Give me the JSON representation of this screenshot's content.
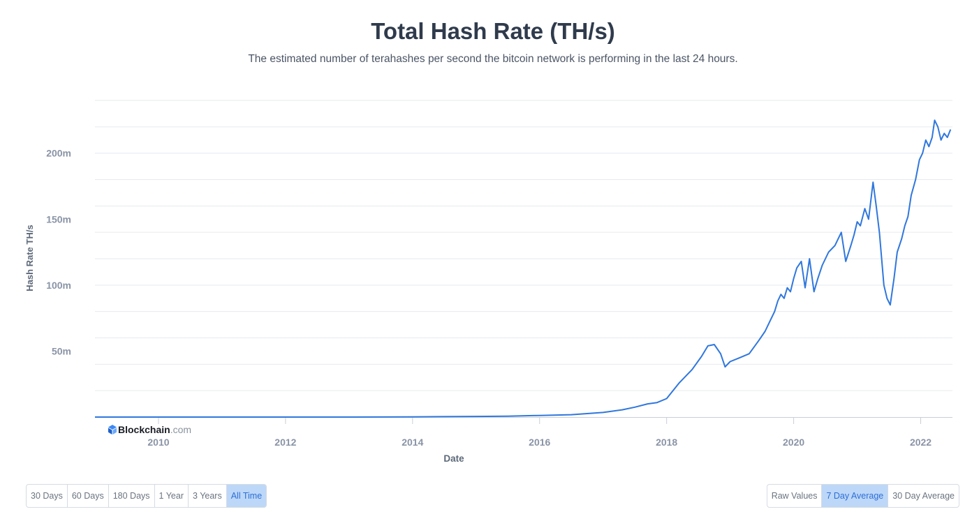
{
  "header": {
    "title": "Total Hash Rate (TH/s)",
    "subtitle": "The estimated number of terahashes per second the bitcoin network is performing in the last 24 hours."
  },
  "brand": {
    "name": "Blockchain",
    "suffix": ".com"
  },
  "range_buttons": [
    "30 Days",
    "60 Days",
    "180 Days",
    "1 Year",
    "3 Years",
    "All Time"
  ],
  "range_active": "All Time",
  "avg_buttons": [
    "Raw Values",
    "7 Day Average",
    "30 Day Average"
  ],
  "avg_active": "7 Day Average",
  "colors": {
    "line": "#2f77dd",
    "grid": "#e6e9ee",
    "axis_text": "#8a94a6",
    "active_bg": "#bdd7f8"
  },
  "chart_data": {
    "type": "line",
    "title": "Total Hash Rate (TH/s)",
    "xlabel": "Date",
    "ylabel": "Hash Rate TH/s",
    "xlim": [
      2009.0,
      2022.5
    ],
    "ylim": [
      0,
      240
    ],
    "y_unit": "m",
    "x_ticks": [
      2010,
      2012,
      2014,
      2016,
      2018,
      2020,
      2022
    ],
    "y_ticks": [
      {
        "value": 50,
        "label": "50m"
      },
      {
        "value": 100,
        "label": "100m"
      },
      {
        "value": 150,
        "label": "150m"
      },
      {
        "value": 200,
        "label": "200m"
      }
    ],
    "grid_step": 20,
    "series": [
      {
        "name": "Hash Rate",
        "x": [
          2009.0,
          2010.0,
          2011.0,
          2012.0,
          2013.0,
          2014.0,
          2014.5,
          2015.0,
          2015.5,
          2016.0,
          2016.5,
          2017.0,
          2017.3,
          2017.5,
          2017.7,
          2017.85,
          2018.0,
          2018.2,
          2018.4,
          2018.55,
          2018.65,
          2018.75,
          2018.85,
          2018.92,
          2019.0,
          2019.15,
          2019.3,
          2019.45,
          2019.55,
          2019.62,
          2019.7,
          2019.75,
          2019.8,
          2019.85,
          2019.9,
          2019.95,
          2020.0,
          2020.05,
          2020.12,
          2020.18,
          2020.25,
          2020.32,
          2020.38,
          2020.45,
          2020.55,
          2020.65,
          2020.75,
          2020.82,
          2020.9,
          2020.95,
          2021.0,
          2021.05,
          2021.12,
          2021.18,
          2021.25,
          2021.3,
          2021.35,
          2021.42,
          2021.47,
          2021.52,
          2021.58,
          2021.63,
          2021.7,
          2021.75,
          2021.8,
          2021.85,
          2021.92,
          2021.98,
          2022.03,
          2022.08,
          2022.13,
          2022.18,
          2022.22,
          2022.27,
          2022.32,
          2022.37,
          2022.42,
          2022.47
        ],
        "values": [
          0,
          0,
          0,
          0,
          0,
          0.1,
          0.3,
          0.5,
          0.7,
          1.2,
          1.8,
          3.5,
          5.5,
          7.5,
          10,
          11,
          14,
          26,
          36,
          46,
          54,
          55,
          48,
          38,
          42,
          45,
          48,
          58,
          65,
          72,
          80,
          88,
          93,
          90,
          98,
          95,
          105,
          113,
          118,
          98,
          120,
          95,
          105,
          115,
          125,
          130,
          140,
          118,
          130,
          138,
          148,
          145,
          158,
          150,
          178,
          160,
          140,
          100,
          90,
          85,
          105,
          125,
          135,
          145,
          152,
          168,
          180,
          195,
          200,
          210,
          205,
          212,
          225,
          220,
          210,
          215,
          212,
          218
        ]
      }
    ]
  }
}
